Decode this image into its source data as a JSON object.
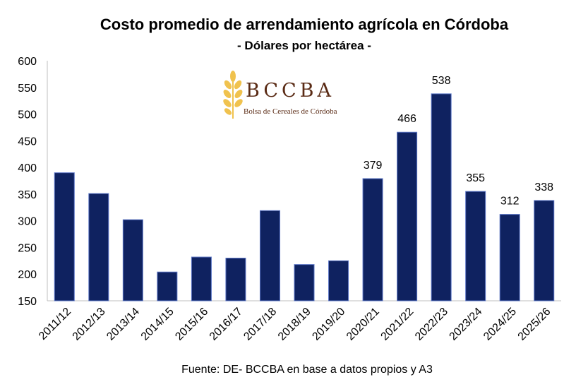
{
  "chart_data": {
    "type": "bar",
    "title": "Costo promedio de arrendamiento agrícola en Córdoba",
    "subtitle": "- Dólares por hectárea -",
    "categories": [
      "2011/12",
      "2012/13",
      "2013/14",
      "2014/15",
      "2015/16",
      "2016/17",
      "2017/18",
      "2018/19",
      "2019/20",
      "2020/21",
      "2021/22",
      "2022/23",
      "2023/24",
      "2024/25",
      "2025/26"
    ],
    "values": [
      390,
      351,
      302,
      204,
      232,
      230,
      319,
      218,
      225,
      379,
      466,
      538,
      355,
      312,
      338
    ],
    "data_labels": [
      "",
      "",
      "",
      "",
      "",
      "",
      "",
      "",
      "",
      "379",
      "466",
      "538",
      "355",
      "312",
      "338"
    ],
    "yticks": [
      "150",
      "200",
      "250",
      "300",
      "350",
      "400",
      "450",
      "500",
      "550",
      "600"
    ],
    "ylim": [
      150,
      600
    ],
    "xlabel": "",
    "ylabel": "",
    "grid": false,
    "legend": "none",
    "bar_color": "#0f2260",
    "source": "Fuente: DE- BCCBA en base a datos propios y A3"
  },
  "logo": {
    "name": "BCCBA",
    "subtitle": "Bolsa de Cereales de Córdoba",
    "color": "#5a2b15",
    "icon_color": "#f0c24e"
  }
}
